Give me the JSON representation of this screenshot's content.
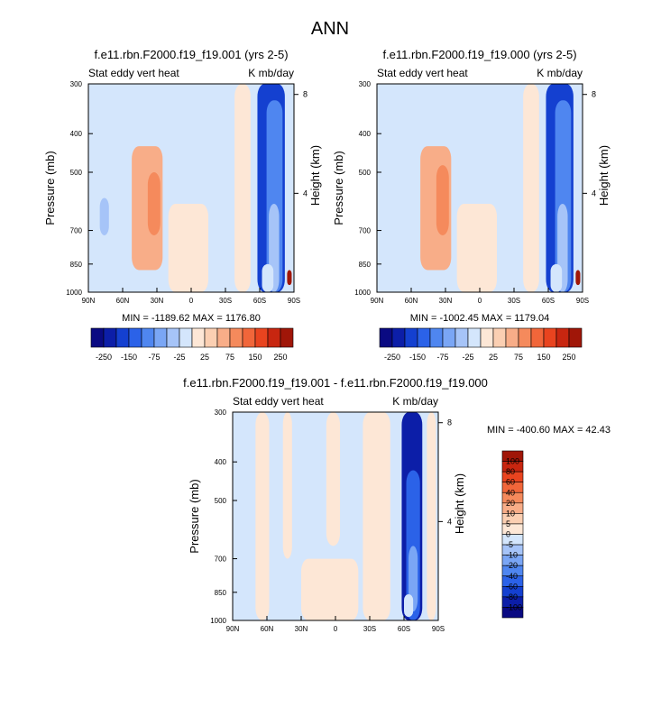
{
  "page_title": "ANN",
  "colors": {
    "neg": [
      "#0a0a82",
      "#0c1ea8",
      "#1440d0",
      "#2b62e8",
      "#4f86f0",
      "#7aa6f5",
      "#a6c4f8",
      "#d4e6fc"
    ],
    "pos": [
      "#fde7d6",
      "#fbcfb2",
      "#f8ad88",
      "#f58a5c",
      "#f1663a",
      "#e9441f",
      "#c82610",
      "#a01608",
      "#7a0a04"
    ],
    "background_field": "#d4e6fc",
    "frame": "#000000"
  },
  "chart_data": [
    {
      "type": "heatmap",
      "id": "panel-1",
      "title": "f.e11.rbn.F2000.f19_f19.001 (yrs 2-5)",
      "left_label": "Stat eddy vert heat",
      "right_label": "K mb/day",
      "ylabel": "Pressure (mb)",
      "ylabel_right": "Height (km)",
      "x_ticks": [
        "90N",
        "60N",
        "30N",
        "0",
        "30S",
        "60S",
        "90S"
      ],
      "x_values": [
        90,
        60,
        30,
        0,
        -30,
        -60,
        -90
      ],
      "y_ticks": [
        "300",
        "400",
        "500",
        "700",
        "850",
        "1000"
      ],
      "y_values": [
        300,
        400,
        500,
        700,
        850,
        1000
      ],
      "y_scale": "log",
      "ylim": [
        1000,
        300
      ],
      "right_ticks": [
        "8",
        "4"
      ],
      "right_values": [
        8,
        4
      ],
      "stats": "MIN = -1189.62  MAX = 1176.80",
      "min": -1189.62,
      "max": 1176.8,
      "features": [
        {
          "kind": "band",
          "lat": [
            52,
            25
          ],
          "p": [
            430,
            880
          ],
          "sign": "pos",
          "level": 2
        },
        {
          "kind": "band",
          "lat": [
            38,
            27
          ],
          "p": [
            500,
            720
          ],
          "sign": "pos",
          "level": 3
        },
        {
          "kind": "band",
          "lat": [
            20,
            -15
          ],
          "p": [
            600,
            1000
          ],
          "sign": "pos",
          "level": 0
        },
        {
          "kind": "band",
          "lat": [
            -38,
            -52
          ],
          "p": [
            300,
            1000
          ],
          "sign": "pos",
          "level": 0
        },
        {
          "kind": "band",
          "lat": [
            -58,
            -82
          ],
          "p": [
            300,
            1000
          ],
          "sign": "neg",
          "level": 2
        },
        {
          "kind": "band",
          "lat": [
            -66,
            -80
          ],
          "p": [
            330,
            1000
          ],
          "sign": "neg",
          "level": 4
        },
        {
          "kind": "band",
          "lat": [
            -68,
            -77
          ],
          "p": [
            600,
            1000
          ],
          "sign": "neg",
          "level": 6
        },
        {
          "kind": "band",
          "lat": [
            -62,
            -72
          ],
          "p": [
            850,
            1000
          ],
          "sign": "neg",
          "level": 7
        },
        {
          "kind": "band",
          "lat": [
            -84,
            -88
          ],
          "p": [
            880,
            960
          ],
          "sign": "pos",
          "level": 7
        },
        {
          "kind": "band",
          "lat": [
            80,
            72
          ],
          "p": [
            580,
            720
          ],
          "sign": "neg",
          "level": 6
        }
      ],
      "colorbar": {
        "orientation": "horizontal",
        "labels": [
          "-250",
          "-150",
          "-75",
          "-25",
          "25",
          "75",
          "150",
          "250"
        ]
      }
    },
    {
      "type": "heatmap",
      "id": "panel-2",
      "title": "f.e11.rbn.F2000.f19_f19.000 (yrs 2-5)",
      "left_label": "Stat eddy vert heat",
      "right_label": "K mb/day",
      "ylabel": "Pressure (mb)",
      "ylabel_right": "Height (km)",
      "x_ticks": [
        "90N",
        "60N",
        "30N",
        "0",
        "30S",
        "60S",
        "90S"
      ],
      "x_values": [
        90,
        60,
        30,
        0,
        -30,
        -60,
        -90
      ],
      "y_ticks": [
        "300",
        "400",
        "500",
        "700",
        "850",
        "1000"
      ],
      "y_values": [
        300,
        400,
        500,
        700,
        850,
        1000
      ],
      "y_scale": "log",
      "ylim": [
        1000,
        300
      ],
      "right_ticks": [
        "8",
        "4"
      ],
      "right_values": [
        8,
        4
      ],
      "stats": "MIN = -1002.45  MAX = 1179.04",
      "min": -1002.45,
      "max": 1179.04,
      "features": [
        {
          "kind": "band",
          "lat": [
            52,
            25
          ],
          "p": [
            430,
            880
          ],
          "sign": "pos",
          "level": 2
        },
        {
          "kind": "band",
          "lat": [
            38,
            27
          ],
          "p": [
            480,
            720
          ],
          "sign": "pos",
          "level": 3
        },
        {
          "kind": "band",
          "lat": [
            20,
            -15
          ],
          "p": [
            600,
            1000
          ],
          "sign": "pos",
          "level": 0
        },
        {
          "kind": "band",
          "lat": [
            -38,
            -52
          ],
          "p": [
            300,
            1000
          ],
          "sign": "pos",
          "level": 0
        },
        {
          "kind": "band",
          "lat": [
            -58,
            -82
          ],
          "p": [
            300,
            1000
          ],
          "sign": "neg",
          "level": 2
        },
        {
          "kind": "band",
          "lat": [
            -66,
            -80
          ],
          "p": [
            330,
            1000
          ],
          "sign": "neg",
          "level": 4
        },
        {
          "kind": "band",
          "lat": [
            -68,
            -77
          ],
          "p": [
            600,
            1000
          ],
          "sign": "neg",
          "level": 6
        },
        {
          "kind": "band",
          "lat": [
            -62,
            -72
          ],
          "p": [
            850,
            1000
          ],
          "sign": "neg",
          "level": 7
        },
        {
          "kind": "band",
          "lat": [
            -84,
            -88
          ],
          "p": [
            880,
            960
          ],
          "sign": "pos",
          "level": 7
        }
      ],
      "colorbar": {
        "orientation": "horizontal",
        "labels": [
          "-250",
          "-150",
          "-75",
          "-25",
          "25",
          "75",
          "150",
          "250"
        ]
      }
    },
    {
      "type": "heatmap",
      "id": "panel-diff",
      "title": "f.e11.rbn.F2000.f19_f19.001 - f.e11.rbn.F2000.f19_f19.000",
      "left_label": "Stat eddy vert heat",
      "right_label": "K mb/day",
      "ylabel": "Pressure (mb)",
      "ylabel_right": "Height (km)",
      "x_ticks": [
        "90N",
        "60N",
        "30N",
        "0",
        "30S",
        "60S",
        "90S"
      ],
      "x_values": [
        90,
        60,
        30,
        0,
        -30,
        -60,
        -90
      ],
      "y_ticks": [
        "300",
        "400",
        "500",
        "700",
        "850",
        "1000"
      ],
      "y_values": [
        300,
        400,
        500,
        700,
        850,
        1000
      ],
      "y_scale": "log",
      "ylim": [
        1000,
        300
      ],
      "right_ticks": [
        "8",
        "4"
      ],
      "right_values": [
        8,
        4
      ],
      "stats": "MIN = -400.60  MAX =  42.43",
      "min": -400.6,
      "max": 42.43,
      "features": [
        {
          "kind": "band",
          "lat": [
            70,
            58
          ],
          "p": [
            300,
            1000
          ],
          "sign": "pos",
          "level": 0
        },
        {
          "kind": "band",
          "lat": [
            46,
            38
          ],
          "p": [
            300,
            700
          ],
          "sign": "pos",
          "level": 0
        },
        {
          "kind": "band",
          "lat": [
            8,
            -4
          ],
          "p": [
            300,
            650
          ],
          "sign": "pos",
          "level": 0
        },
        {
          "kind": "band",
          "lat": [
            30,
            -20
          ],
          "p": [
            700,
            1000
          ],
          "sign": "pos",
          "level": 0
        },
        {
          "kind": "band",
          "lat": [
            -24,
            -48
          ],
          "p": [
            300,
            1000
          ],
          "sign": "pos",
          "level": 0
        },
        {
          "kind": "band",
          "lat": [
            -58,
            -76
          ],
          "p": [
            300,
            1000
          ],
          "sign": "neg",
          "level": 1
        },
        {
          "kind": "band",
          "lat": [
            -62,
            -74
          ],
          "p": [
            420,
            1000
          ],
          "sign": "neg",
          "level": 3
        },
        {
          "kind": "band",
          "lat": [
            -64,
            -72
          ],
          "p": [
            650,
            950
          ],
          "sign": "neg",
          "level": 5
        },
        {
          "kind": "band",
          "lat": [
            -60,
            -68
          ],
          "p": [
            860,
            980
          ],
          "sign": "neg",
          "level": 7
        },
        {
          "kind": "band",
          "lat": [
            -80,
            -88
          ],
          "p": [
            300,
            1000
          ],
          "sign": "pos",
          "level": 0
        }
      ],
      "colorbar": {
        "orientation": "vertical",
        "labels": [
          "100",
          "80",
          "60",
          "40",
          "20",
          "10",
          "5",
          "0",
          "-5",
          "-10",
          "-20",
          "-40",
          "-60",
          "-80",
          "-100"
        ]
      }
    }
  ]
}
